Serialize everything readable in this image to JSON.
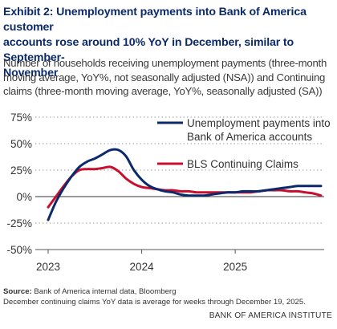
{
  "title_lines": [
    "Exhibit 2: Unemployment payments into Bank of America customer",
    "accounts rose around 10% YoY in December, similar to September-",
    "November"
  ],
  "subtitle_lines": [
    "Number of households receiving unemployment payments (three-month",
    "moving average, YoY%, not seasonally adjusted (NSA)) and Continuing",
    "claims (three-month moving average, YoY%, seasonally adjusted (SA))"
  ],
  "source_label": "Source:",
  "source_text": " Bank of America internal data, Bloomberg",
  "note": "December continuing claims YoY data is average for weeks through December 19, 2025.",
  "brand": "BANK OF AMERICA INSTITUTE",
  "chart_data": {
    "type": "line",
    "x_tick_labels": [
      "2023",
      "2024",
      "2025"
    ],
    "y_tick_labels": [
      "75%",
      "50%",
      "25%",
      "0%",
      "-25%",
      "-50%"
    ],
    "ylim": [
      -50,
      75
    ],
    "y_ticks": [
      75,
      50,
      25,
      0,
      -25,
      -50
    ],
    "x_start": "2023-01",
    "x_end": "2025-12",
    "grid": "y-dotted",
    "legend": "top-right",
    "series": [
      {
        "name": "Unemployment payments into Bank of America accounts",
        "legend_lines": [
          "Unemployment payments into",
          "Bank of America accounts"
        ],
        "color": "#0b2a6b",
        "x": [
          "2023-01",
          "2023-02",
          "2023-03",
          "2023-04",
          "2023-05",
          "2023-06",
          "2023-07",
          "2023-08",
          "2023-09",
          "2023-10",
          "2023-11",
          "2023-12",
          "2024-01",
          "2024-02",
          "2024-03",
          "2024-04",
          "2024-05",
          "2024-06",
          "2024-07",
          "2024-08",
          "2024-09",
          "2024-10",
          "2024-11",
          "2024-12",
          "2025-01",
          "2025-02",
          "2025-03",
          "2025-04",
          "2025-05",
          "2025-06",
          "2025-07",
          "2025-08",
          "2025-09",
          "2025-10",
          "2025-11",
          "2025-12"
        ],
        "values": [
          -22,
          -5,
          8,
          19,
          28,
          33,
          36,
          40,
          44,
          44,
          38,
          25,
          16,
          10,
          7,
          5,
          4,
          2,
          1,
          1,
          1,
          2,
          3,
          4,
          4,
          5,
          5,
          5,
          6,
          7,
          8,
          9,
          10,
          10,
          10,
          10
        ]
      },
      {
        "name": "BLS Continuing Claims",
        "legend_lines": [
          "BLS Continuing Claims"
        ],
        "color": "#c8102e",
        "x": [
          "2023-01",
          "2023-02",
          "2023-03",
          "2023-04",
          "2023-05",
          "2023-06",
          "2023-07",
          "2023-08",
          "2023-09",
          "2023-10",
          "2023-11",
          "2023-12",
          "2024-01",
          "2024-02",
          "2024-03",
          "2024-04",
          "2024-05",
          "2024-06",
          "2024-07",
          "2024-08",
          "2024-09",
          "2024-10",
          "2024-11",
          "2024-12",
          "2025-01",
          "2025-02",
          "2025-03",
          "2025-04",
          "2025-05",
          "2025-06",
          "2025-07",
          "2025-08",
          "2025-09",
          "2025-10",
          "2025-11",
          "2025-12"
        ],
        "values": [
          -10,
          0,
          10,
          19,
          25,
          26,
          26,
          27,
          28,
          24,
          17,
          12,
          9,
          8,
          7,
          6,
          6,
          5,
          5,
          4,
          4,
          4,
          4,
          4,
          4,
          4,
          4,
          5,
          6,
          6,
          6,
          5,
          5,
          4,
          3,
          1
        ]
      }
    ]
  }
}
